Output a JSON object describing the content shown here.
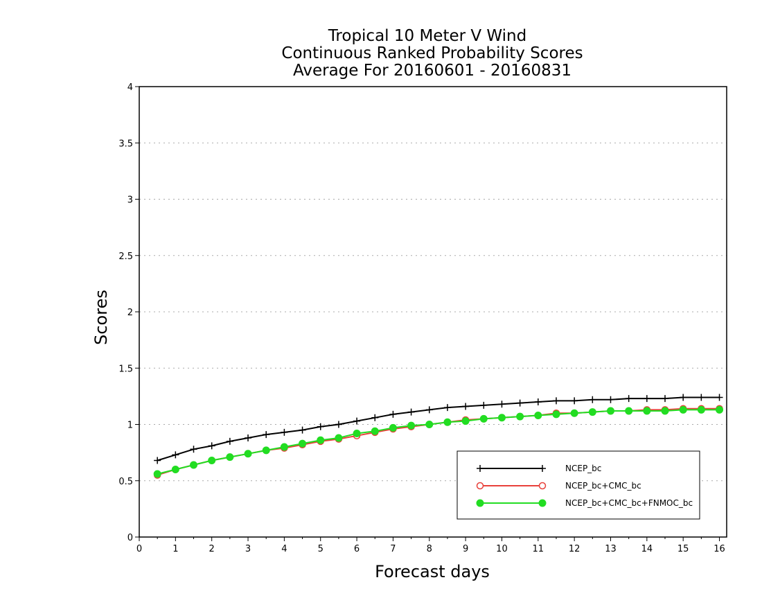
{
  "chart_data": {
    "type": "line",
    "title": "Tropical 10 Meter V Wind",
    "subtitle": "Continuous Ranked Probability Scores",
    "subtitle2": "Average For 20160601 - 20160831",
    "xlabel": "Forecast days",
    "ylabel": "Scores",
    "xlim": [
      0,
      16.2
    ],
    "ylim": [
      0,
      4
    ],
    "x_ticks": [
      "0",
      "1",
      "2",
      "3",
      "4",
      "5",
      "6",
      "7",
      "8",
      "9",
      "10",
      "11",
      "12",
      "13",
      "14",
      "15",
      "16"
    ],
    "y_ticks": [
      "0",
      "0.5",
      "1",
      "1.5",
      "2",
      "2.5",
      "3",
      "3.5",
      "4"
    ],
    "grid": true,
    "legend_position": "bottom-right",
    "x": [
      0.5,
      1,
      1.5,
      2,
      2.5,
      3,
      3.5,
      4,
      4.5,
      5,
      5.5,
      6,
      6.5,
      7,
      7.5,
      8,
      8.5,
      9,
      9.5,
      10,
      10.5,
      11,
      11.5,
      12,
      12.5,
      13,
      13.5,
      14,
      14.5,
      15,
      15.5,
      16
    ],
    "series": [
      {
        "name": "NCEP_bc",
        "color": "#000000",
        "marker": "plus",
        "values": [
          0.68,
          0.73,
          0.78,
          0.81,
          0.85,
          0.88,
          0.91,
          0.93,
          0.95,
          0.98,
          1.0,
          1.03,
          1.06,
          1.09,
          1.11,
          1.13,
          1.15,
          1.16,
          1.17,
          1.18,
          1.19,
          1.2,
          1.21,
          1.21,
          1.22,
          1.22,
          1.23,
          1.23,
          1.23,
          1.24,
          1.24,
          1.24
        ]
      },
      {
        "name": "NCEP_bc+CMC_bc",
        "color": "#e8403a",
        "marker": "open-circle",
        "values": [
          0.55,
          0.6,
          0.64,
          0.68,
          0.71,
          0.74,
          0.77,
          0.79,
          0.82,
          0.85,
          0.87,
          0.9,
          0.93,
          0.96,
          0.98,
          1.0,
          1.02,
          1.04,
          1.05,
          1.06,
          1.07,
          1.08,
          1.1,
          1.1,
          1.11,
          1.12,
          1.12,
          1.13,
          1.13,
          1.14,
          1.14,
          1.14
        ]
      },
      {
        "name": "NCEP_bc+CMC_bc+FNMOC_bc",
        "color": "#22dd22",
        "marker": "filled-circle",
        "values": [
          0.56,
          0.6,
          0.64,
          0.68,
          0.71,
          0.74,
          0.77,
          0.8,
          0.83,
          0.86,
          0.88,
          0.92,
          0.94,
          0.97,
          0.99,
          1.0,
          1.02,
          1.03,
          1.05,
          1.06,
          1.07,
          1.08,
          1.09,
          1.1,
          1.11,
          1.12,
          1.12,
          1.12,
          1.12,
          1.13,
          1.13,
          1.13
        ]
      }
    ]
  }
}
